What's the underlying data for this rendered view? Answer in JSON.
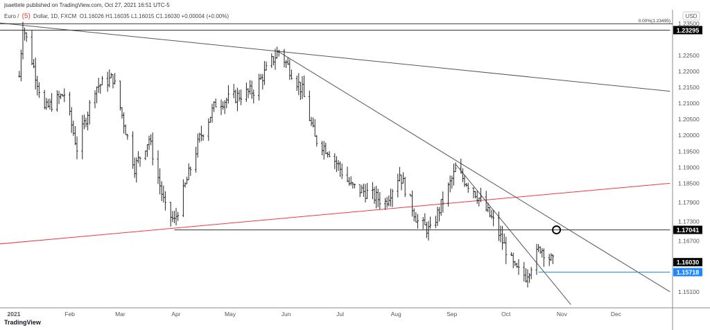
{
  "header": {
    "published": "jsaettele published on TradingView.com, Oct 27, 2021 16:51 UTC-5"
  },
  "legend": {
    "symbol_a": "Euro / ",
    "badge": "(5)",
    "symbol_b": " Dollar, 1D, FXCM",
    "ohlc": "O1.16026  H1.16035  L1.16015  C1.16030  +0.00004 (+0.00%)"
  },
  "footer": {
    "brand": "TradingView"
  },
  "chart_data": {
    "type": "ohlc",
    "currency": "USD",
    "y_ticks": [
      "1.23500",
      "1.22500",
      "1.22000",
      "1.21500",
      "1.21000",
      "1.20500",
      "1.20000",
      "1.19500",
      "1.19000",
      "1.18500",
      "1.17900",
      "1.17300",
      "1.16700",
      "1.15100"
    ],
    "x_ticks": [
      {
        "label": "2021",
        "date": "2021-01-01"
      },
      {
        "label": "Feb",
        "date": "2021-02-01"
      },
      {
        "label": "Mar",
        "date": "2021-03-01"
      },
      {
        "label": "Apr",
        "date": "2021-04-01"
      },
      {
        "label": "May",
        "date": "2021-05-01"
      },
      {
        "label": "Jun",
        "date": "2021-06-01"
      },
      {
        "label": "Jul",
        "date": "2021-07-01"
      },
      {
        "label": "Aug",
        "date": "2021-08-01"
      },
      {
        "label": "Sep",
        "date": "2021-09-01"
      },
      {
        "label": "Oct",
        "date": "2021-10-01"
      },
      {
        "label": "Nov",
        "date": "2021-11-01"
      },
      {
        "label": "Dec",
        "date": "2021-12-01"
      }
    ],
    "approx_close_path": [
      [
        "2021-01-04",
        1.2185
      ],
      [
        "2021-01-06",
        1.2346
      ],
      [
        "2021-01-18",
        1.208
      ],
      [
        "2021-01-29",
        1.213
      ],
      [
        "2021-02-05",
        1.196
      ],
      [
        "2021-02-15",
        1.215
      ],
      [
        "2021-02-25",
        1.218
      ],
      [
        "2021-03-09",
        1.19
      ],
      [
        "2021-03-17",
        1.199
      ],
      [
        "2021-03-26",
        1.177
      ],
      [
        "2021-03-31",
        1.173
      ],
      [
        "2021-04-14",
        1.199
      ],
      [
        "2021-04-23",
        1.21
      ],
      [
        "2021-05-14",
        1.214
      ],
      [
        "2021-05-25",
        1.224
      ],
      [
        "2021-05-28",
        1.2265
      ],
      [
        "2021-06-10",
        1.214
      ],
      [
        "2021-06-17",
        1.199
      ],
      [
        "2021-06-25",
        1.195
      ],
      [
        "2021-07-07",
        1.184
      ],
      [
        "2021-07-16",
        1.182
      ],
      [
        "2021-07-26",
        1.179
      ],
      [
        "2021-08-03",
        1.188
      ],
      [
        "2021-08-13",
        1.173
      ],
      [
        "2021-08-20",
        1.17
      ],
      [
        "2021-09-03",
        1.189
      ],
      [
        "2021-09-13",
        1.183
      ],
      [
        "2021-09-24",
        1.173
      ],
      [
        "2021-10-06",
        1.158
      ],
      [
        "2021-10-12",
        1.156
      ],
      [
        "2021-10-20",
        1.165
      ],
      [
        "2021-10-27",
        1.1603
      ]
    ],
    "price_labels": [
      {
        "value": "1.23295",
        "price": 1.23295,
        "bg": "#000000"
      },
      {
        "value": "1.17041",
        "price": 1.17041,
        "bg": "#000000"
      },
      {
        "value": "1.16030",
        "price": 1.1603,
        "bg": "#000000"
      },
      {
        "value": "1.15718",
        "price": 1.15718,
        "bg": "#1e88ff"
      }
    ],
    "fib": {
      "label": "0.00%(1.23495)",
      "price": 1.23495
    },
    "lines": [
      {
        "from": [
          "2020-12-24",
          1.2352
        ],
        "to": [
          "2021-12-31",
          1.2138
        ],
        "color": "#555555"
      },
      {
        "from": [
          "2020-12-24",
          1.166
        ],
        "to": [
          "2021-12-31",
          1.185
        ],
        "color": "#f23645"
      },
      {
        "from": [
          "2021-05-27",
          1.2265
        ],
        "to": [
          "2021-12-31",
          1.151
        ],
        "color": "#555555"
      },
      {
        "from": [
          "2021-09-03",
          1.191
        ],
        "to": [
          "2021-11-06",
          1.147
        ],
        "color": "#555555"
      },
      {
        "from": [
          "2021-03-31",
          1.17041
        ],
        "to": [
          "2021-12-31",
          1.17041
        ],
        "color": "#333333"
      },
      {
        "from": [
          "2021-10-19",
          1.15718
        ],
        "to": [
          "2021-12-31",
          1.15718
        ],
        "color": "#1e88ff"
      },
      {
        "from": [
          "2020-12-24",
          1.23295
        ],
        "to": [
          "2021-12-31",
          1.23295
        ],
        "color": "#333333"
      }
    ],
    "marker": {
      "date": "2021-10-29",
      "price": 1.17041
    },
    "accent": "#1e88ff"
  }
}
